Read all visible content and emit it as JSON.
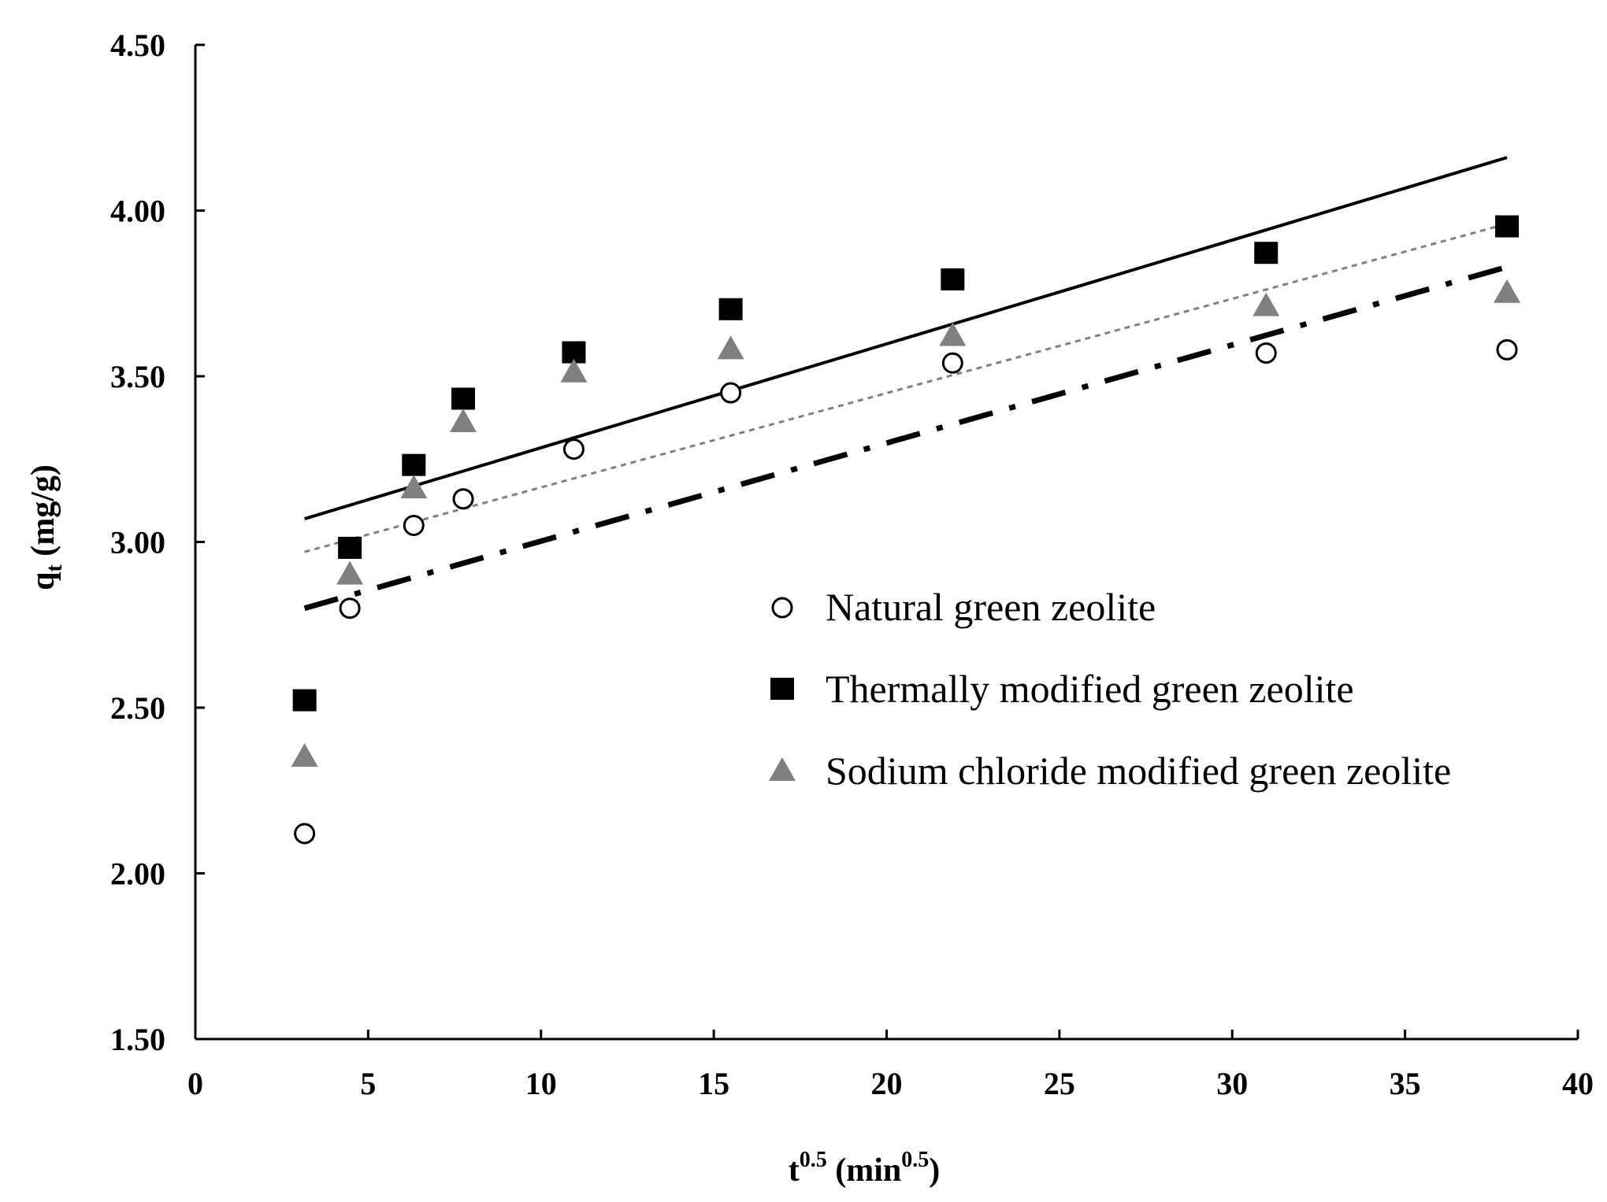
{
  "chart_data": {
    "type": "scatter",
    "title": "",
    "xlabel": {
      "base": "t",
      "sup": "0.5",
      "unit_open": " (min",
      "unit_sup": "0.5",
      "unit_close": ")"
    },
    "ylabel": {
      "base": "q",
      "sub": "t",
      "unit": " (mg/g)"
    },
    "xlim": [
      0,
      40
    ],
    "ylim": [
      1.5,
      4.5
    ],
    "x_ticks": [
      0,
      5,
      10,
      15,
      20,
      25,
      30,
      35,
      40
    ],
    "x_tick_labels": [
      "0",
      "5",
      "10",
      "15",
      "20",
      "25",
      "30",
      "35",
      "40"
    ],
    "y_ticks": [
      1.5,
      2.0,
      2.5,
      3.0,
      3.5,
      4.0,
      4.5
    ],
    "y_tick_labels": [
      "1.50",
      "2.00",
      "2.50",
      "3.00",
      "3.50",
      "4.00",
      "4.50"
    ],
    "grid": false,
    "legend_position": "right-middle",
    "x": [
      3.16,
      4.47,
      6.32,
      7.75,
      10.95,
      15.49,
      21.91,
      30.98,
      37.95
    ],
    "series": [
      {
        "name": "Natural green zeolite",
        "marker": "circle-open",
        "color": "#000000",
        "values": [
          2.12,
          2.8,
          3.05,
          3.13,
          3.28,
          3.45,
          3.54,
          3.57,
          3.58
        ],
        "fit": {
          "style": "dashdot",
          "color": "#000000",
          "x": [
            3.16,
            37.95
          ],
          "y": [
            2.8,
            3.83
          ]
        }
      },
      {
        "name": "Thermally modified green zeolite",
        "marker": "square",
        "color": "#000000",
        "values": [
          2.52,
          2.98,
          3.23,
          3.43,
          3.57,
          3.7,
          3.79,
          3.87,
          3.95
        ],
        "fit": {
          "style": "solid",
          "color": "#000000",
          "x": [
            3.16,
            37.95
          ],
          "y": [
            3.07,
            4.16
          ]
        }
      },
      {
        "name": "Sodium chloride modified green zeolite",
        "marker": "triangle",
        "color": "#808080",
        "values": [
          2.35,
          2.9,
          3.16,
          3.36,
          3.51,
          3.58,
          3.62,
          3.71,
          3.75
        ],
        "fit": {
          "style": "dotted",
          "color": "#808080",
          "x": [
            3.16,
            37.95
          ],
          "y": [
            2.97,
            3.96
          ]
        }
      }
    ]
  }
}
